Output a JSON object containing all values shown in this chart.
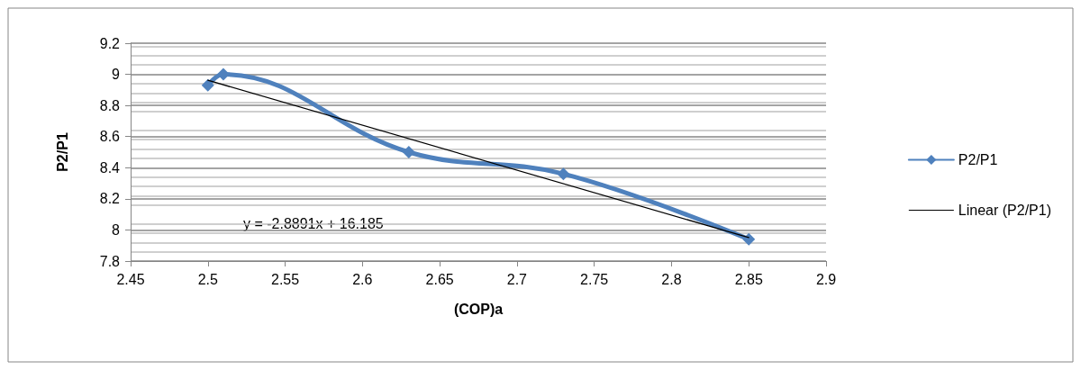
{
  "chart_data": {
    "type": "line",
    "xlabel": "(COP)a",
    "ylabel": "P2/P1",
    "series": [
      {
        "name": "P2/P1",
        "color": "#4f81bd",
        "x": [
          2.5,
          2.51,
          2.63,
          2.73,
          2.85
        ],
        "values": [
          8.93,
          9.0,
          8.5,
          8.36,
          7.94
        ],
        "marker": "diamond"
      },
      {
        "name": "Linear (P2/P1)",
        "color": "#000000",
        "type": "line",
        "x": [
          2.5,
          2.85
        ],
        "values": [
          8.962,
          7.951
        ],
        "marker": "none"
      }
    ],
    "xlim": [
      2.45,
      2.9
    ],
    "xticks": [
      2.45,
      2.5,
      2.55,
      2.6,
      2.65,
      2.7,
      2.75,
      2.8,
      2.85,
      2.9
    ],
    "ylim": [
      7.8,
      9.2
    ],
    "yticks": [
      7.8,
      8,
      8.2,
      8.4,
      8.6,
      8.8,
      9,
      9.2
    ],
    "grid": "y",
    "legend": "right",
    "annotations": [
      "y = -2.8891x + 16.185"
    ]
  }
}
